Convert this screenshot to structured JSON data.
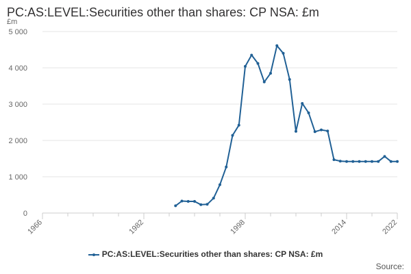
{
  "chart_data": {
    "type": "line",
    "title": "PC:AS:LEVEL:Securities other than shares: CP NSA: £m",
    "ylabel": "£m",
    "xlabel": "",
    "xlim": [
      1966,
      2022
    ],
    "ylim": [
      0,
      5000
    ],
    "x_ticks": [
      1966,
      1982,
      1998,
      2014,
      2022
    ],
    "y_ticks": [
      0,
      1000,
      2000,
      3000,
      4000,
      5000
    ],
    "y_tick_labels": [
      "0",
      "1 000",
      "2 000",
      "3 000",
      "4 000",
      "5 000"
    ],
    "color": "#206095",
    "series": [
      {
        "name": "PC:AS:LEVEL:Securities other than shares: CP NSA: £m",
        "x": [
          1987,
          1988,
          1989,
          1990,
          1991,
          1992,
          1993,
          1994,
          1995,
          1996,
          1997,
          1998,
          1999,
          2000,
          2001,
          2002,
          2003,
          2004,
          2005,
          2006,
          2007,
          2008,
          2009,
          2010,
          2011,
          2012,
          2013,
          2014,
          2015,
          2016,
          2017,
          2018,
          2019,
          2020,
          2021,
          2022
        ],
        "values": [
          200,
          330,
          320,
          320,
          230,
          240,
          410,
          780,
          1270,
          2140,
          2420,
          4040,
          4350,
          4120,
          3610,
          3850,
          4610,
          4400,
          3680,
          2250,
          3020,
          2760,
          2240,
          2290,
          2260,
          1470,
          1430,
          1420,
          1420,
          1420,
          1420,
          1420,
          1420,
          1560,
          1420,
          1420
        ]
      }
    ]
  },
  "legend": {
    "label": "PC:AS:LEVEL:Securities other than shares: CP NSA: £m"
  },
  "source": {
    "label": "Source:"
  }
}
